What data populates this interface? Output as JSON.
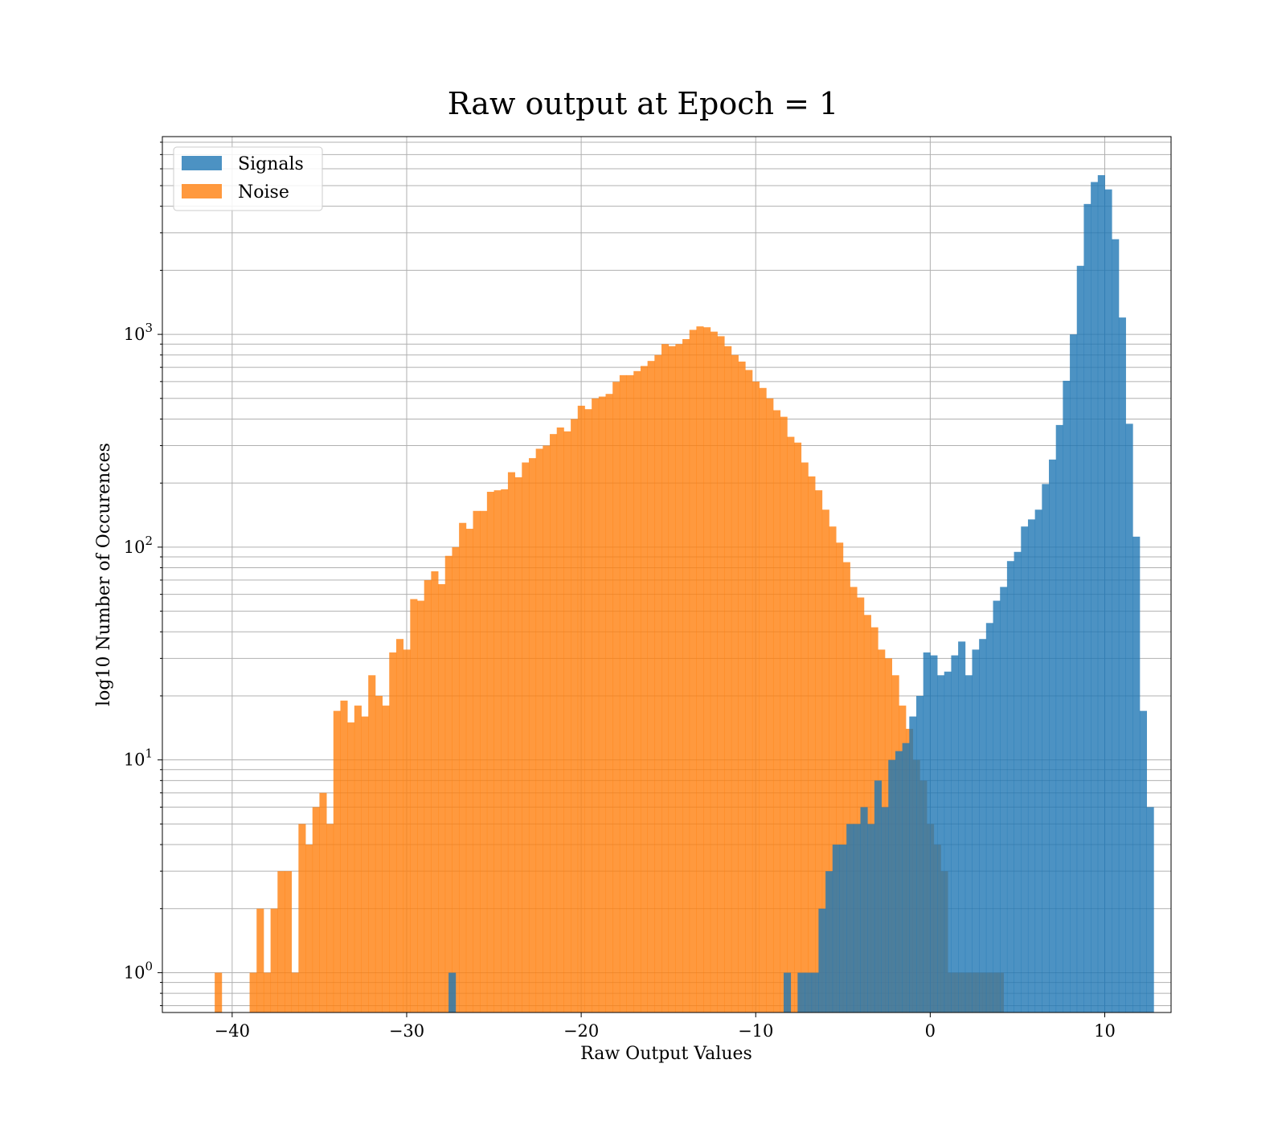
{
  "chart_data": {
    "type": "bar",
    "title": "Raw output at Epoch = 1",
    "xlabel": "Raw Output Values",
    "ylabel": "log10 Number of Occurences",
    "xlim": [
      -44,
      13.8
    ],
    "ylim": [
      0.65,
      8500
    ],
    "y_scale": "log",
    "grid": true,
    "legend_position": "top-left",
    "x_ticks": [
      {
        "value": -40,
        "label": "−40"
      },
      {
        "value": -30,
        "label": "−30"
      },
      {
        "value": -20,
        "label": "−20"
      },
      {
        "value": -10,
        "label": "−10"
      },
      {
        "value": 0,
        "label": "0"
      },
      {
        "value": 10,
        "label": "10"
      }
    ],
    "y_ticks": [
      {
        "value": 1,
        "base": "10",
        "exp": "0"
      },
      {
        "value": 10,
        "base": "10",
        "exp": "1"
      },
      {
        "value": 100,
        "base": "10",
        "exp": "2"
      },
      {
        "value": 1000,
        "base": "10",
        "exp": "3"
      }
    ],
    "series": [
      {
        "name": "Noise",
        "color": "#ff7f0e",
        "bin_width": 0.4,
        "bins": [
          [
            -41.0,
            1
          ],
          [
            -39.0,
            1
          ],
          [
            -38.6,
            2
          ],
          [
            -38.2,
            1
          ],
          [
            -37.8,
            2
          ],
          [
            -37.4,
            3
          ],
          [
            -37.0,
            3
          ],
          [
            -36.6,
            1
          ],
          [
            -36.2,
            5
          ],
          [
            -35.8,
            4
          ],
          [
            -35.4,
            6
          ],
          [
            -35.0,
            7
          ],
          [
            -34.6,
            5
          ],
          [
            -34.2,
            17
          ],
          [
            -33.8,
            19
          ],
          [
            -33.4,
            15
          ],
          [
            -33.0,
            18
          ],
          [
            -32.6,
            16
          ],
          [
            -32.2,
            25
          ],
          [
            -31.8,
            20
          ],
          [
            -31.4,
            18
          ],
          [
            -31.0,
            32
          ],
          [
            -30.6,
            37
          ],
          [
            -30.2,
            33
          ],
          [
            -29.8,
            57
          ],
          [
            -29.4,
            56
          ],
          [
            -29.0,
            70
          ],
          [
            -28.6,
            77
          ],
          [
            -28.2,
            67
          ],
          [
            -27.8,
            91
          ],
          [
            -27.4,
            100
          ],
          [
            -27.0,
            130
          ],
          [
            -26.6,
            122
          ],
          [
            -26.2,
            148
          ],
          [
            -25.8,
            148
          ],
          [
            -25.4,
            182
          ],
          [
            -25.0,
            185
          ],
          [
            -24.6,
            187
          ],
          [
            -24.2,
            225
          ],
          [
            -23.8,
            213
          ],
          [
            -23.4,
            250
          ],
          [
            -23.0,
            262
          ],
          [
            -22.6,
            290
          ],
          [
            -22.2,
            300
          ],
          [
            -21.8,
            340
          ],
          [
            -21.4,
            365
          ],
          [
            -21.0,
            350
          ],
          [
            -20.6,
            400
          ],
          [
            -20.2,
            462
          ],
          [
            -19.8,
            445
          ],
          [
            -19.4,
            500
          ],
          [
            -19.0,
            510
          ],
          [
            -18.6,
            525
          ],
          [
            -18.2,
            598
          ],
          [
            -17.8,
            643
          ],
          [
            -17.4,
            643
          ],
          [
            -17.0,
            672
          ],
          [
            -16.6,
            710
          ],
          [
            -16.2,
            750
          ],
          [
            -15.8,
            800
          ],
          [
            -15.4,
            900
          ],
          [
            -15.0,
            880
          ],
          [
            -14.6,
            900
          ],
          [
            -14.2,
            950
          ],
          [
            -13.8,
            1050
          ],
          [
            -13.4,
            1090
          ],
          [
            -13.0,
            1080
          ],
          [
            -12.6,
            1030
          ],
          [
            -12.2,
            980
          ],
          [
            -11.8,
            880
          ],
          [
            -11.4,
            800
          ],
          [
            -11.0,
            745
          ],
          [
            -10.6,
            680
          ],
          [
            -10.2,
            600
          ],
          [
            -9.8,
            560
          ],
          [
            -9.4,
            500
          ],
          [
            -9.0,
            440
          ],
          [
            -8.6,
            410
          ],
          [
            -8.2,
            330
          ],
          [
            -7.8,
            310
          ],
          [
            -7.4,
            250
          ],
          [
            -7.0,
            215
          ],
          [
            -6.6,
            185
          ],
          [
            -6.2,
            150
          ],
          [
            -5.8,
            125
          ],
          [
            -5.4,
            105
          ],
          [
            -5.0,
            85
          ],
          [
            -4.6,
            65
          ],
          [
            -4.2,
            58
          ],
          [
            -3.8,
            48
          ],
          [
            -3.4,
            42
          ],
          [
            -3.0,
            33
          ],
          [
            -2.6,
            30
          ],
          [
            -2.2,
            25
          ],
          [
            -1.8,
            18
          ],
          [
            -1.4,
            14
          ],
          [
            -1.0,
            10
          ],
          [
            -0.6,
            8
          ],
          [
            -0.2,
            5
          ],
          [
            0.2,
            4
          ],
          [
            0.6,
            3
          ],
          [
            1.0,
            1
          ],
          [
            1.4,
            1
          ],
          [
            1.8,
            1
          ],
          [
            2.2,
            1
          ],
          [
            2.6,
            1
          ],
          [
            3.0,
            1
          ],
          [
            3.4,
            1
          ],
          [
            3.8,
            1
          ]
        ]
      },
      {
        "name": "Signals",
        "color": "#1f77b4",
        "bin_width": 0.4,
        "bins": [
          [
            -27.6,
            1
          ],
          [
            -8.4,
            1
          ],
          [
            -7.6,
            1
          ],
          [
            -7.2,
            1
          ],
          [
            -6.8,
            1
          ],
          [
            -6.4,
            2
          ],
          [
            -6.0,
            3
          ],
          [
            -5.6,
            4
          ],
          [
            -5.2,
            4
          ],
          [
            -4.8,
            5
          ],
          [
            -4.4,
            5
          ],
          [
            -4.0,
            6
          ],
          [
            -3.6,
            5
          ],
          [
            -3.2,
            8
          ],
          [
            -2.8,
            6
          ],
          [
            -2.4,
            10
          ],
          [
            -2.0,
            11
          ],
          [
            -1.6,
            12
          ],
          [
            -1.2,
            16
          ],
          [
            -0.8,
            20
          ],
          [
            -0.4,
            32
          ],
          [
            0.0,
            31
          ],
          [
            0.4,
            25
          ],
          [
            0.8,
            26
          ],
          [
            1.2,
            31
          ],
          [
            1.6,
            36
          ],
          [
            2.0,
            25
          ],
          [
            2.4,
            33
          ],
          [
            2.8,
            37
          ],
          [
            3.2,
            44
          ],
          [
            3.6,
            56
          ],
          [
            4.0,
            65
          ],
          [
            4.4,
            86
          ],
          [
            4.8,
            95
          ],
          [
            5.2,
            125
          ],
          [
            5.6,
            135
          ],
          [
            6.0,
            150
          ],
          [
            6.4,
            198
          ],
          [
            6.8,
            258
          ],
          [
            7.2,
            375
          ],
          [
            7.6,
            605
          ],
          [
            8.0,
            1000
          ],
          [
            8.4,
            2100
          ],
          [
            8.8,
            4100
          ],
          [
            9.2,
            5200
          ],
          [
            9.6,
            5600
          ],
          [
            10.0,
            4800
          ],
          [
            10.4,
            2800
          ],
          [
            10.8,
            1200
          ],
          [
            11.2,
            380
          ],
          [
            11.6,
            112
          ],
          [
            12.0,
            17
          ],
          [
            12.4,
            6
          ]
        ]
      }
    ]
  }
}
